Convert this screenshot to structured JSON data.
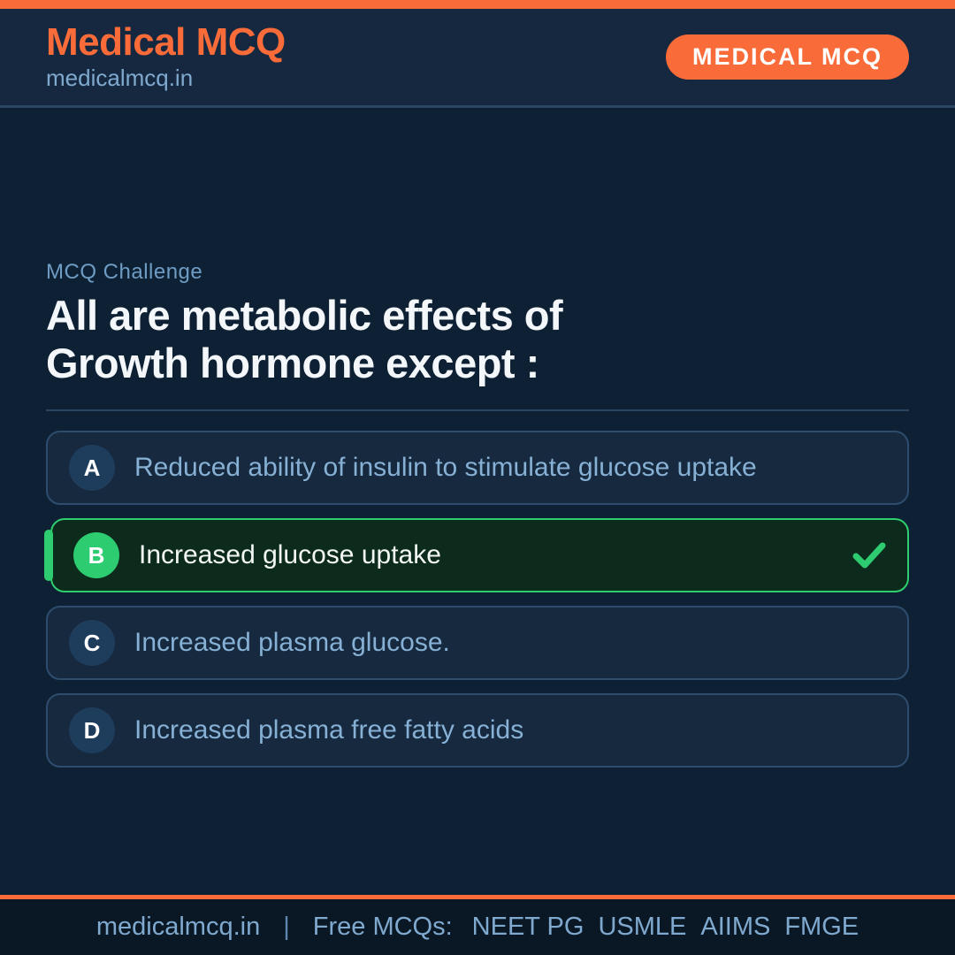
{
  "header": {
    "brand_title": "Medical MCQ",
    "brand_subtitle": "medicalmcq.in",
    "badge_label": "MEDICAL MCQ"
  },
  "question": {
    "eyebrow": "MCQ Challenge",
    "title_lines": [
      "All are metabolic effects of",
      "Growth hormone except :"
    ]
  },
  "options": [
    {
      "letter": "A",
      "text": "Reduced ability of insulin to stimulate glucose uptake",
      "correct": false
    },
    {
      "letter": "B",
      "text": "Increased glucose uptake",
      "correct": true,
      "icon": "checkmark-icon"
    },
    {
      "letter": "C",
      "text": "Increased plasma glucose.",
      "correct": false
    },
    {
      "letter": "D",
      "text": "Increased plasma free fatty acids",
      "correct": false
    }
  ],
  "footer": {
    "site": "medicalmcq.in",
    "separator": "|",
    "tagline_label": "Free MCQs:",
    "exams": [
      "NEET PG",
      "USMLE",
      "AIIMS",
      "FMGE"
    ]
  },
  "colors": {
    "accent_orange": "#F96C3A",
    "background": "#0E2134",
    "header_background": "#152840",
    "footer_background": "#0A1826",
    "card_background": "#16293F",
    "card_border": "#2E4D6E",
    "correct_green": "#2ECC71",
    "correct_card_background": "#0D2B1C",
    "option_text": "#86B0D4",
    "muted_blue": "#6E9CC4",
    "title_white": "#F4F7FA"
  }
}
